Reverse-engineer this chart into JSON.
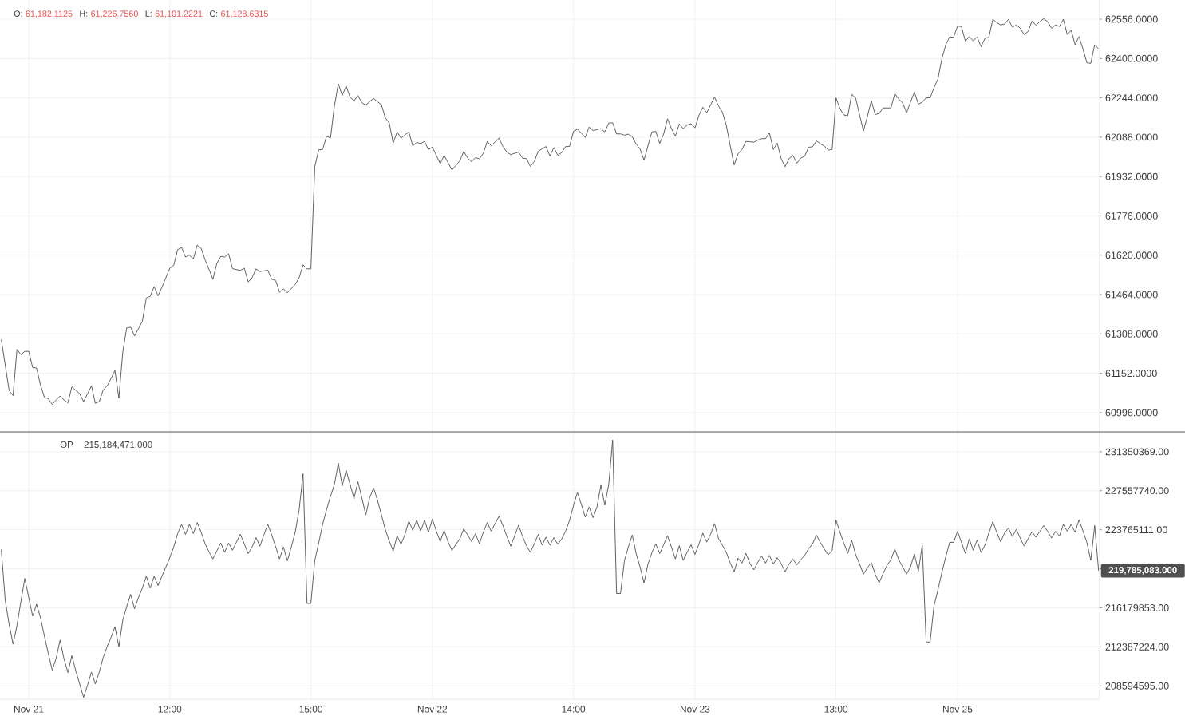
{
  "chart_data": [
    {
      "type": "line",
      "annotations": [
        "O:",
        "61,182.1125",
        "H:",
        "61,226.7560",
        "L:",
        "61,101.2221",
        "C:",
        "61,128.6315"
      ],
      "color": "#505050",
      "categories": [
        null,
        null,
        null,
        null,
        null,
        null,
        null,
        null,
        null,
        null,
        null,
        null,
        null,
        null,
        null,
        null,
        null,
        null,
        null,
        null,
        null,
        null,
        null,
        null,
        null,
        null,
        null,
        null,
        null,
        null,
        null,
        null,
        null,
        null,
        null,
        null,
        null,
        null,
        null,
        null,
        null,
        null,
        null,
        null,
        null,
        null,
        null,
        null,
        null,
        null,
        null,
        null,
        null,
        null,
        null,
        null,
        null,
        null,
        null,
        null,
        null,
        null,
        null,
        null,
        null,
        null,
        null,
        null,
        null,
        null,
        null,
        null,
        null,
        null,
        null,
        null,
        null,
        null,
        null,
        null,
        null,
        null,
        null,
        null,
        null,
        null,
        null,
        null,
        null,
        null,
        null,
        null,
        null,
        null,
        null,
        null,
        null,
        null,
        null,
        null,
        null,
        null,
        null,
        null,
        null,
        null,
        null,
        null,
        null,
        null,
        null,
        null,
        null,
        null,
        null,
        null,
        null,
        null,
        null,
        null,
        null,
        null,
        null,
        null,
        null,
        null,
        null,
        null,
        null,
        null,
        null,
        null,
        null,
        null,
        null,
        null,
        null,
        null,
        null,
        null,
        null,
        null,
        null,
        null,
        null,
        null,
        null,
        null,
        null,
        null,
        null,
        null,
        null,
        null,
        null,
        null,
        null,
        null,
        null,
        null,
        null,
        null,
        null,
        null,
        null,
        null,
        null,
        null,
        null,
        null,
        null,
        null,
        null,
        null,
        null,
        null,
        null,
        null,
        null,
        null,
        null,
        null,
        null,
        null,
        null,
        null,
        null,
        null,
        null,
        null,
        null,
        null,
        null,
        null,
        null,
        null,
        null,
        null,
        null,
        null,
        null,
        null,
        null,
        null,
        null,
        null,
        null,
        null,
        null,
        null,
        null,
        null,
        null,
        null,
        null,
        null,
        null,
        null,
        null,
        null,
        null,
        null,
        null,
        null,
        null,
        null,
        null,
        null,
        null,
        null,
        null,
        null,
        null,
        null,
        null,
        null,
        null,
        null,
        null,
        null,
        null,
        null,
        null,
        null,
        null,
        null,
        null,
        null,
        null,
        null,
        null,
        null,
        null,
        null,
        null,
        null,
        null,
        null,
        null,
        null,
        null,
        null,
        null,
        null,
        null,
        null,
        null,
        null,
        null,
        null,
        null,
        null,
        null,
        null,
        null,
        null,
        null,
        null,
        null,
        null,
        null
      ],
      "values": [
        61286,
        61185,
        61084,
        61064,
        61247,
        61226,
        61239,
        61239,
        61175,
        61173,
        61106,
        61057,
        61051,
        61029,
        61046,
        61062,
        61046,
        61035,
        61098,
        61085,
        61071,
        61040,
        61071,
        61102,
        61033,
        61040,
        61086,
        61102,
        61132,
        61163,
        61053,
        61236,
        61332,
        61335,
        61300,
        61329,
        61358,
        61451,
        61457,
        61496,
        61459,
        61493,
        61531,
        61569,
        61580,
        61642,
        61651,
        61613,
        61620,
        61605,
        61660,
        61647,
        61602,
        61564,
        61525,
        61588,
        61615,
        61613,
        61626,
        61567,
        61563,
        61560,
        61569,
        61514,
        61531,
        61566,
        61555,
        61558,
        61561,
        61525,
        61520,
        61473,
        61487,
        61471,
        61488,
        61504,
        61531,
        61582,
        61566,
        61566,
        61972,
        62038,
        62039,
        62092,
        62085,
        62212,
        62300,
        62253,
        62291,
        62247,
        62232,
        62253,
        62225,
        62215,
        62229,
        62242,
        62229,
        62216,
        62165,
        62144,
        62065,
        62109,
        62084,
        62097,
        62109,
        62054,
        62067,
        62063,
        62071,
        62038,
        62049,
        62016,
        61983,
        62016,
        61987,
        61958,
        61976,
        61994,
        62032,
        62005,
        61991,
        62007,
        62002,
        62024,
        62071,
        62054,
        62069,
        62084,
        62051,
        62029,
        62019,
        62024,
        62029,
        62005,
        62003,
        61972,
        61991,
        62032,
        62042,
        62051,
        62013,
        62047,
        62016,
        62027,
        62051,
        62051,
        62111,
        62120,
        62104,
        62087,
        62128,
        62114,
        62118,
        62122,
        62109,
        62144,
        62145,
        62101,
        62101,
        62096,
        62100,
        62090,
        62060,
        62041,
        61997,
        62053,
        62109,
        62111,
        62063,
        62100,
        62161,
        62122,
        62092,
        62141,
        62122,
        62136,
        62141,
        62125,
        62174,
        62207,
        62185,
        62216,
        62247,
        62212,
        62187,
        62136,
        62054,
        61978,
        62022,
        62039,
        62071,
        62070,
        62068,
        62076,
        62082,
        62082,
        62105,
        62039,
        62064,
        62003,
        61971,
        62003,
        62016,
        61985,
        62005,
        62013,
        62048,
        62050,
        62073,
        62062,
        62053,
        62037,
        62039,
        62244,
        62201,
        62176,
        62173,
        62258,
        62244,
        62176,
        62113,
        62170,
        62233,
        62178,
        62182,
        62204,
        62204,
        62204,
        62261,
        62239,
        62224,
        62185,
        62227,
        62267,
        62219,
        62227,
        62244,
        62244,
        62284,
        62319,
        62398,
        62455,
        62486,
        62484,
        62529,
        62526,
        62469,
        62487,
        62470,
        62486,
        62447,
        62480,
        62484,
        62555,
        62543,
        62533,
        62537,
        62555,
        62524,
        62533,
        62520,
        62495,
        62507,
        62549,
        62532,
        62546,
        62558,
        62546,
        62520,
        62533,
        62527,
        62556,
        62495,
        62512,
        62455,
        62487,
        62438,
        62383,
        62381,
        62455,
        62438
      ],
      "ylim": [
        60923,
        62632
      ],
      "yticks": [
        {
          "value": 62556,
          "label": "62556.0000"
        },
        {
          "value": 62400,
          "label": "62400.0000"
        },
        {
          "value": 62244,
          "label": "62244.0000"
        },
        {
          "value": 62088,
          "label": "62088.0000"
        },
        {
          "value": 61932,
          "label": "61932.0000"
        },
        {
          "value": 61776,
          "label": "61776.0000"
        },
        {
          "value": 61620,
          "label": "61620.0000"
        },
        {
          "value": 61464,
          "label": "61464.0000"
        },
        {
          "value": 61308,
          "label": "61308.0000"
        },
        {
          "value": 61152,
          "label": "61152.0000"
        },
        {
          "value": 60996,
          "label": "60996.0000"
        }
      ],
      "grid": true,
      "tick_labels": "y"
    },
    {
      "type": "line",
      "title": "OP",
      "annotations": [
        "215,184,471.000"
      ],
      "color": "#505050",
      "categories": [
        null,
        null,
        null,
        null,
        null,
        null,
        null,
        "Nov 21",
        null,
        null,
        null,
        null,
        null,
        null,
        null,
        null,
        null,
        null,
        null,
        null,
        null,
        null,
        null,
        null,
        null,
        null,
        null,
        null,
        null,
        null,
        null,
        null,
        null,
        null,
        null,
        null,
        null,
        null,
        null,
        null,
        null,
        null,
        null,
        "12:00",
        null,
        null,
        null,
        null,
        null,
        null,
        null,
        null,
        null,
        null,
        null,
        null,
        null,
        null,
        null,
        null,
        null,
        null,
        null,
        null,
        null,
        null,
        null,
        null,
        null,
        null,
        null,
        null,
        null,
        null,
        null,
        null,
        null,
        null,
        null,
        "15:00",
        null,
        null,
        null,
        null,
        null,
        null,
        null,
        null,
        null,
        null,
        null,
        null,
        null,
        null,
        null,
        null,
        null,
        null,
        null,
        null,
        null,
        null,
        null,
        null,
        null,
        null,
        null,
        null,
        null,
        null,
        "Nov 22",
        null,
        null,
        null,
        null,
        null,
        null,
        null,
        null,
        null,
        null,
        null,
        null,
        null,
        null,
        null,
        null,
        null,
        null,
        null,
        null,
        null,
        null,
        null,
        null,
        null,
        null,
        null,
        null,
        null,
        null,
        null,
        null,
        null,
        null,
        null,
        "14:00",
        null,
        null,
        null,
        null,
        null,
        null,
        null,
        null,
        null,
        null,
        null,
        null,
        null,
        null,
        null,
        null,
        null,
        null,
        null,
        null,
        null,
        null,
        null,
        null,
        null,
        null,
        null,
        null,
        null,
        null,
        "Nov 23",
        null,
        null,
        null,
        null,
        null,
        null,
        null,
        null,
        null,
        null,
        null,
        null,
        null,
        null,
        null,
        null,
        null,
        null,
        null,
        null,
        null,
        null,
        null,
        null,
        null,
        null,
        null,
        null,
        null,
        null,
        null,
        null,
        null,
        null,
        null,
        "13:00",
        null,
        null,
        null,
        null,
        null,
        null,
        null,
        null,
        null,
        null,
        null,
        null,
        null,
        null,
        null,
        null,
        null,
        null,
        null,
        null,
        null,
        null,
        null,
        null,
        null,
        null,
        null,
        null,
        null,
        null,
        "Nov 25",
        null,
        null,
        null,
        null,
        null,
        null,
        null,
        null,
        null,
        null,
        null,
        null,
        null,
        null,
        null,
        null,
        null,
        null,
        null,
        null,
        null,
        null,
        null,
        null,
        null,
        null,
        null,
        null,
        null,
        null,
        null,
        null,
        null,
        null,
        null,
        null
      ],
      "values": [
        221830000,
        216920000,
        214590000,
        212650000,
        214460000,
        216790000,
        219040000,
        217180000,
        215370000,
        216530000,
        215240000,
        213430000,
        211750000,
        210120000,
        211280000,
        213040000,
        211230000,
        209890000,
        211540000,
        210070000,
        208780000,
        207480000,
        208650000,
        209940000,
        208780000,
        209940000,
        211360000,
        212400000,
        213300000,
        214340000,
        212400000,
        214980000,
        216280000,
        217490000,
        216090000,
        217180000,
        218090000,
        219250000,
        218090000,
        219250000,
        218340000,
        219250000,
        220150000,
        221060000,
        222090000,
        223390000,
        224290000,
        223310000,
        224290000,
        223390000,
        224470000,
        223520000,
        222400000,
        221630000,
        220930000,
        221710000,
        222480000,
        221580000,
        222480000,
        221780000,
        222560000,
        223330000,
        222400000,
        221450000,
        222090000,
        223000000,
        222170000,
        223260000,
        224290000,
        223260000,
        222140000,
        220930000,
        222090000,
        220750000,
        222090000,
        223520000,
        225710000,
        229200000,
        216610000,
        216610000,
        220800000,
        222480000,
        224290000,
        225710000,
        227010000,
        228170000,
        230240000,
        228040000,
        229540000,
        228170000,
        226800000,
        228430000,
        226880000,
        225200000,
        226880000,
        227830000,
        226620000,
        225200000,
        223770000,
        222660000,
        221710000,
        223180000,
        222350000,
        223310000,
        224600000,
        223720000,
        224680000,
        223640000,
        224680000,
        223520000,
        224810000,
        223640000,
        222610000,
        223700000,
        222610000,
        221760000,
        222350000,
        222870000,
        223850000,
        223260000,
        222610000,
        223390000,
        222400000,
        223520000,
        224470000,
        223640000,
        224370000,
        225070000,
        224160000,
        223130000,
        222170000,
        223180000,
        224210000,
        223130000,
        222220000,
        221580000,
        222400000,
        223310000,
        222270000,
        223050000,
        222270000,
        223000000,
        222350000,
        222870000,
        223640000,
        224680000,
        226100000,
        227390000,
        226230000,
        224990000,
        225970000,
        224940000,
        225970000,
        228090000,
        226150000,
        228170000,
        232490000,
        217570000,
        217570000,
        220750000,
        222090000,
        223260000,
        221450000,
        220150000,
        218600000,
        220410000,
        221520000,
        222400000,
        221450000,
        222300000,
        223180000,
        222090000,
        220930000,
        222220000,
        220800000,
        221580000,
        222300000,
        221370000,
        222350000,
        223440000,
        222560000,
        223330000,
        224370000,
        222920000,
        222270000,
        221580000,
        220540000,
        219690000,
        221010000,
        220520000,
        221470000,
        220520000,
        219870000,
        220580000,
        221220000,
        220520000,
        221280000,
        220440000,
        221050000,
        220490000,
        219680000,
        220440000,
        220910000,
        220350000,
        220860000,
        221280000,
        221920000,
        222400000,
        223240000,
        222540000,
        221890000,
        221330000,
        221750000,
        224700000,
        223520000,
        222460000,
        221470000,
        222740000,
        221360000,
        220440000,
        219450000,
        220070000,
        220580000,
        219450000,
        218610000,
        219510000,
        220300000,
        220860000,
        221890000,
        220860000,
        220160000,
        219450000,
        220160000,
        221420000,
        219730000,
        222260000,
        212860000,
        212860000,
        216370000,
        217910000,
        219590000,
        221140000,
        222540000,
        222540000,
        223610000,
        222540000,
        221470000,
        222880000,
        221780000,
        222760000,
        221560000,
        222260000,
        223440000,
        224560000,
        223520000,
        222600000,
        223440000,
        223940000,
        223100000,
        223800000,
        222960000,
        222180000,
        222880000,
        223580000,
        223040000,
        223610000,
        224170000,
        223610000,
        222960000,
        223610000,
        223160000,
        224280000,
        223610000,
        224280000,
        223520000,
        224730000,
        223660000,
        222540000,
        220800000,
        224170000,
        219785083
      ],
      "value_labels": [
        null,
        null,
        null,
        null,
        null,
        null,
        null,
        null,
        null,
        null,
        null,
        null,
        null,
        null,
        null,
        null,
        null,
        null,
        null,
        null,
        null,
        null,
        null,
        null,
        null,
        null,
        null,
        null,
        null,
        null,
        null,
        null,
        null,
        null,
        null,
        null,
        null,
        null,
        null,
        null,
        null,
        null,
        null,
        null,
        null,
        null,
        null,
        null,
        null,
        null,
        null,
        null,
        null,
        null,
        null,
        null,
        null,
        null,
        null,
        null,
        null,
        null,
        null,
        null,
        null,
        null,
        null,
        null,
        null,
        null,
        null,
        null,
        null,
        null,
        null,
        null,
        null,
        null,
        null,
        null,
        null,
        null,
        null,
        null,
        null,
        null,
        null,
        null,
        null,
        null,
        null,
        null,
        null,
        null,
        null,
        null,
        null,
        null,
        null,
        null,
        null,
        null,
        null,
        null,
        null,
        null,
        null,
        null,
        null,
        null,
        null,
        null,
        null,
        null,
        null,
        null,
        null,
        null,
        null,
        null,
        null,
        null,
        null,
        null,
        null,
        null,
        null,
        null,
        null,
        null,
        null,
        null,
        null,
        null,
        null,
        null,
        null,
        null,
        null,
        null,
        null,
        null,
        null,
        null,
        null,
        null,
        null,
        null,
        null,
        null,
        null,
        null,
        null,
        null,
        null,
        null,
        null,
        null,
        null,
        null,
        null,
        null,
        null,
        null,
        null,
        null,
        null,
        null,
        null,
        null,
        null,
        null,
        null,
        null,
        null,
        null,
        null,
        null,
        null,
        null,
        null,
        null,
        null,
        null,
        null,
        null,
        null,
        null,
        null,
        null,
        null,
        null,
        null,
        null,
        null,
        null,
        null,
        null,
        null,
        null,
        null,
        null,
        null,
        null,
        null,
        null,
        null,
        null,
        null,
        null,
        null,
        null,
        null,
        null,
        null,
        null,
        null,
        null,
        null,
        null,
        null,
        null,
        null,
        null,
        null,
        null,
        null,
        null,
        null,
        null,
        null,
        null,
        null,
        null,
        null,
        null,
        null,
        null,
        null,
        null,
        null,
        null,
        null,
        null,
        null,
        null,
        null,
        null,
        null,
        null,
        null,
        null,
        null,
        null,
        null,
        null,
        null,
        null,
        null,
        null,
        null,
        null,
        null,
        null,
        null,
        null,
        null,
        null,
        null,
        null,
        null,
        null,
        null,
        null,
        null,
        null,
        null,
        null,
        null,
        null,
        "219,785,083.000"
      ],
      "ylim": [
        207300000,
        233200000
      ],
      "yticks": [
        {
          "value": 231350369,
          "label": "231350369.00"
        },
        {
          "value": 227557740,
          "label": "227557740.00"
        },
        {
          "value": 223765111,
          "label": "223765111.00"
        },
        {
          "value": 219972482,
          "label": null
        },
        {
          "value": 216179853,
          "label": "216179853.00"
        },
        {
          "value": 212387224,
          "label": "212387224.00"
        },
        {
          "value": 208594595,
          "label": "208594595.00"
        }
      ],
      "grid": true
    }
  ]
}
